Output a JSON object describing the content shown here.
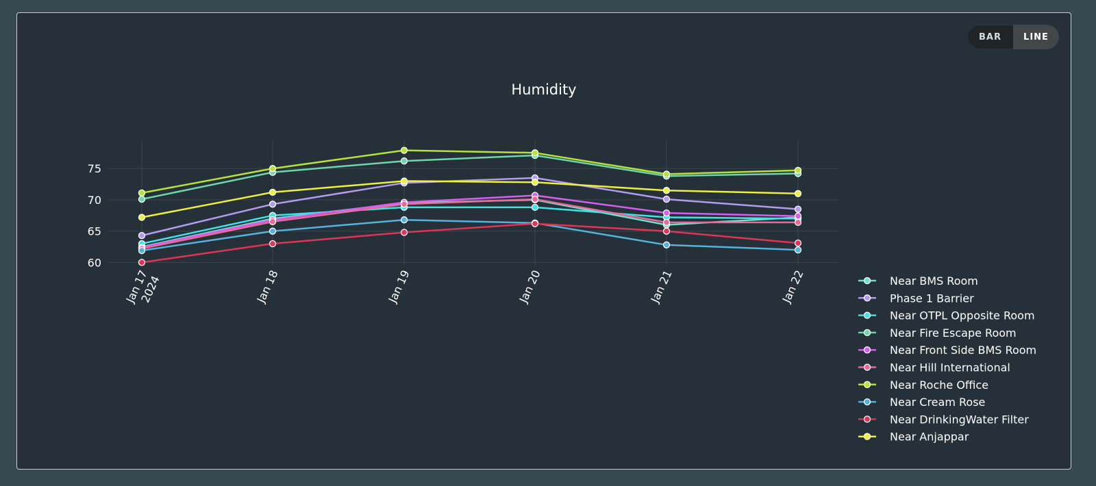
{
  "toggle": {
    "bar_label": "BAR",
    "line_label": "LINE",
    "active": "line"
  },
  "colors": {
    "page_background": "#374851",
    "chart_background": "#263038",
    "text": "#ffffff",
    "grid": "#3a474f"
  },
  "chart_data": {
    "type": "line",
    "title": "Humidity",
    "xlabel": "",
    "ylabel": "",
    "x": [
      "Jan 17\n2024",
      "Jan 18",
      "Jan 19",
      "Jan 20",
      "Jan 21",
      "Jan 22"
    ],
    "y_ticks": [
      60,
      65,
      70,
      75
    ],
    "ylim": [
      59.5,
      79.5
    ],
    "grid": true,
    "legend_position": "bottom-right",
    "series": [
      {
        "name": "Near BMS Room",
        "color": "#6fe0cf",
        "values": [
          62.5,
          67.0,
          69.5,
          70.0,
          66.0,
          67.2
        ]
      },
      {
        "name": "Phase 1 Barrier",
        "color": "#b39cf0",
        "values": [
          64.3,
          69.3,
          72.7,
          73.5,
          70.1,
          68.5
        ]
      },
      {
        "name": "Near OTPL Opposite Room",
        "color": "#3fe3e6",
        "values": [
          63.0,
          67.5,
          68.8,
          68.8,
          67.2,
          67.0
        ]
      },
      {
        "name": "Near Fire Escape Room",
        "color": "#6ed6a8",
        "values": [
          70.1,
          74.4,
          76.2,
          77.1,
          73.8,
          74.2
        ]
      },
      {
        "name": "Near Front Side BMS Room",
        "color": "#d65ff0",
        "values": [
          62.4,
          66.8,
          69.6,
          70.7,
          67.9,
          67.4
        ]
      },
      {
        "name": "Near Hill International",
        "color": "#e96a98",
        "values": [
          62.2,
          66.5,
          69.3,
          70.1,
          66.4,
          66.4
        ]
      },
      {
        "name": "Near Roche Office",
        "color": "#b5e33c",
        "values": [
          71.1,
          75.0,
          77.9,
          77.5,
          74.1,
          74.7
        ]
      },
      {
        "name": "Near Cream Rose",
        "color": "#56b2dc",
        "values": [
          61.9,
          65.0,
          66.8,
          66.3,
          62.8,
          62.0
        ]
      },
      {
        "name": "Near DrinkingWater Filter",
        "color": "#dd3458",
        "values": [
          60.0,
          63.0,
          64.8,
          66.2,
          65.0,
          63.1
        ]
      },
      {
        "name": "Near Anjappar",
        "color": "#eef03e",
        "values": [
          67.2,
          71.2,
          73.0,
          72.8,
          71.5,
          71.0
        ]
      }
    ]
  }
}
